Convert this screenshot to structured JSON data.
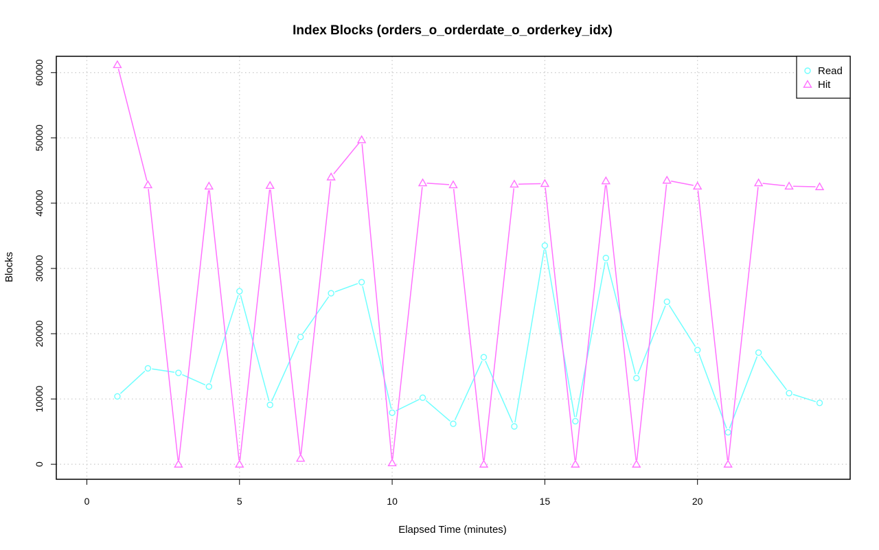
{
  "chart_data": {
    "type": "line",
    "title": "Index Blocks (orders_o_orderdate_o_orderkey_idx)",
    "xlabel": "Elapsed Time (minutes)",
    "ylabel": "Blocks",
    "xlim": [
      -1,
      25
    ],
    "ylim": [
      -2300,
      62500
    ],
    "x_ticks": [
      0,
      5,
      10,
      15,
      20
    ],
    "y_ticks": [
      0,
      10000,
      20000,
      30000,
      40000,
      50000,
      60000
    ],
    "grid": true,
    "legend_position": "top-right",
    "x": [
      1,
      2,
      3,
      4,
      5,
      6,
      7,
      8,
      9,
      10,
      11,
      12,
      13,
      14,
      15,
      16,
      17,
      18,
      19,
      20,
      21,
      22,
      23,
      24
    ],
    "series": [
      {
        "name": "Read",
        "color": "#6fffff",
        "marker": "circle",
        "values": [
          10400,
          14700,
          14000,
          11900,
          26500,
          9100,
          19500,
          26200,
          27900,
          7900,
          10200,
          6200,
          16400,
          5800,
          33500,
          6600,
          31600,
          13200,
          24900,
          17500,
          4900,
          17100,
          10900,
          9400
        ]
      },
      {
        "name": "Hit",
        "color": "#ff70ff",
        "marker": "triangle",
        "values": [
          61200,
          42800,
          0,
          42600,
          0,
          42700,
          900,
          44000,
          49700,
          200,
          43100,
          42800,
          0,
          42900,
          43000,
          0,
          43400,
          0,
          43500,
          42600,
          0,
          43100,
          42600,
          42500
        ]
      }
    ]
  }
}
